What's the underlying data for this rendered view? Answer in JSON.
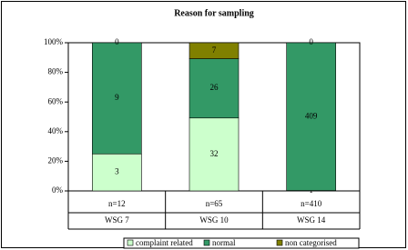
{
  "chart_data": {
    "type": "bar",
    "stacked": "percent",
    "title": "Reason for sampling",
    "categories": [
      "WSG 7",
      "WSG 10",
      "WSG 14"
    ],
    "category_sublabels": [
      "n=12",
      "n=65",
      "n=410"
    ],
    "series": [
      {
        "name": "complaint related",
        "color": "#ccffcc",
        "values": [
          3,
          32,
          1
        ]
      },
      {
        "name": "normal",
        "color": "#339966",
        "values": [
          9,
          26,
          409
        ]
      },
      {
        "name": "non categorised",
        "color": "#808000",
        "values": [
          0,
          7,
          0
        ]
      }
    ],
    "ylim": [
      0,
      100
    ],
    "yticks": [
      {
        "value": 0,
        "label": "0%"
      },
      {
        "value": 20,
        "label": "20%"
      },
      {
        "value": 40,
        "label": "40%"
      },
      {
        "value": 60,
        "label": "60%"
      },
      {
        "value": 80,
        "label": "80%"
      },
      {
        "value": 100,
        "label": "100%"
      }
    ],
    "grid": false
  }
}
